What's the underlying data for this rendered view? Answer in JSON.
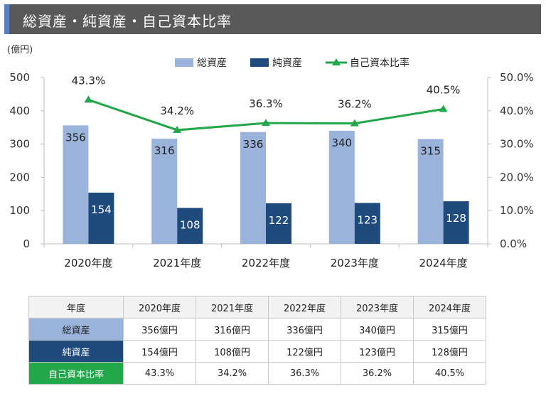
{
  "title": "総資産・純資産・自己資本比率",
  "colors": {
    "total_assets": "#9ab3da",
    "net_assets": "#1f4a7c",
    "equity_ratio": "#22a74a",
    "banner": "#595959",
    "banner_accent": "#5b7fc4"
  },
  "chart_data": {
    "type": "bar",
    "unit_label": "(億円)",
    "categories": [
      "2020年度",
      "2021年度",
      "2022年度",
      "2023年度",
      "2024年度"
    ],
    "series": [
      {
        "name": "総資産",
        "type": "bar",
        "axis": "left",
        "values": [
          356,
          316,
          336,
          340,
          315
        ],
        "labels": [
          "356",
          "316",
          "336",
          "340",
          "315"
        ]
      },
      {
        "name": "純資産",
        "type": "bar",
        "axis": "left",
        "values": [
          154,
          108,
          122,
          123,
          128
        ],
        "labels": [
          "154",
          "108",
          "122",
          "123",
          "128"
        ]
      },
      {
        "name": "自己資本比率",
        "type": "line",
        "axis": "right",
        "values": [
          43.3,
          34.2,
          36.3,
          36.2,
          40.5
        ],
        "labels": [
          "43.3%",
          "34.2%",
          "36.3%",
          "36.2%",
          "40.5%"
        ]
      }
    ],
    "ylim": [
      0,
      500
    ],
    "yticks": [
      "0",
      "100",
      "200",
      "300",
      "400",
      "500"
    ],
    "y2lim": [
      0,
      50
    ],
    "y2ticks": [
      "0.0%",
      "10.0%",
      "20.0%",
      "30.0%",
      "40.0%",
      "50.0%"
    ],
    "legend_position": "top-center",
    "grid": false
  },
  "table": {
    "header_label": "年度",
    "columns": [
      "2020年度",
      "2021年度",
      "2022年度",
      "2023年度",
      "2024年度"
    ],
    "rows": [
      {
        "label": "総資産",
        "cells": [
          "356億円",
          "316億円",
          "336億円",
          "340億円",
          "315億円"
        ]
      },
      {
        "label": "純資産",
        "cells": [
          "154億円",
          "108億円",
          "122億円",
          "123億円",
          "128億円"
        ]
      },
      {
        "label": "自己資本比率",
        "cells": [
          "43.3%",
          "34.2%",
          "36.3%",
          "36.2%",
          "40.5%"
        ]
      }
    ]
  }
}
